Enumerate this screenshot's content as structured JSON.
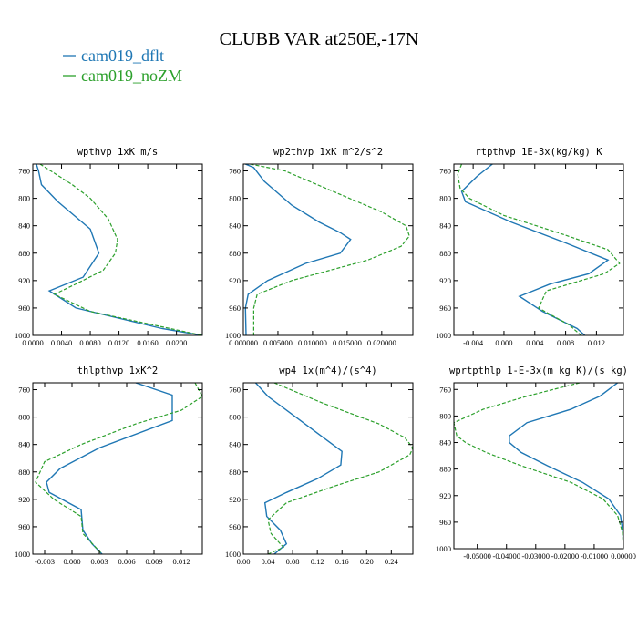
{
  "figure": {
    "title": "CLUBB VAR at250E,-17N",
    "legend": [
      {
        "label": "cam019_dflt",
        "color": "#1f77b4",
        "dash": "solid"
      },
      {
        "label": "cam019_noZM",
        "color": "#2ca02c",
        "dash": "dashed"
      }
    ]
  },
  "chart_data": [
    {
      "type": "line",
      "title": "wpthvp  1xK m/s",
      "xticks": [
        "0.0000",
        "0.0040",
        "0.0080",
        "0.0120",
        "0.0160",
        "0.0200"
      ],
      "yticks": [
        "760",
        "800",
        "840",
        "880",
        "920",
        "960",
        "1000"
      ],
      "xlim": [
        0,
        0.0236
      ],
      "ylim": [
        750,
        1000
      ],
      "y_inverted": true,
      "series": [
        {
          "name": "cam019_dflt",
          "y": [
            750,
            760,
            780,
            805,
            845,
            880,
            915,
            935,
            960,
            990,
            1000
          ],
          "x": [
            0.0005,
            0.0008,
            0.0012,
            0.0035,
            0.008,
            0.0092,
            0.007,
            0.0023,
            0.006,
            0.018,
            0.0236
          ]
        },
        {
          "name": "cam019_noZM",
          "y": [
            750,
            760,
            780,
            800,
            830,
            860,
            880,
            905,
            925,
            940,
            965,
            1000
          ],
          "x": [
            0.001,
            0.0025,
            0.0055,
            0.008,
            0.0105,
            0.0118,
            0.0115,
            0.0098,
            0.006,
            0.003,
            0.008,
            0.0236
          ]
        }
      ]
    },
    {
      "type": "line",
      "title": "wp2thvp  1xK m^2/s^2",
      "xticks": [
        "0.000000",
        "0.005000",
        "0.010000",
        "0.015000",
        "0.020000"
      ],
      "yticks": [
        "760",
        "800",
        "840",
        "880",
        "920",
        "960",
        "1000"
      ],
      "xlim": [
        0,
        0.0245
      ],
      "ylim": [
        750,
        1000
      ],
      "y_inverted": true,
      "series": [
        {
          "name": "cam019_dflt",
          "y": [
            750,
            755,
            775,
            810,
            835,
            850,
            860,
            880,
            895,
            920,
            940,
            960,
            1000
          ],
          "x": [
            0.0003,
            0.0015,
            0.003,
            0.007,
            0.011,
            0.014,
            0.0155,
            0.014,
            0.009,
            0.0035,
            0.0007,
            0.0003,
            0.0004
          ]
        },
        {
          "name": "cam019_noZM",
          "y": [
            750,
            760,
            790,
            820,
            840,
            855,
            870,
            890,
            920,
            940,
            960,
            1000
          ],
          "x": [
            0.001,
            0.006,
            0.013,
            0.02,
            0.0235,
            0.024,
            0.0228,
            0.018,
            0.007,
            0.002,
            0.0015,
            0.0015
          ]
        }
      ]
    },
    {
      "type": "line",
      "title": "rtpthvp  1E-3x(kg/kg) K",
      "xticks": [
        "-0.004",
        "0.000",
        "0.004",
        "0.008",
        "0.012"
      ],
      "yticks": [
        "760",
        "800",
        "840",
        "880",
        "920",
        "960",
        "1000"
      ],
      "xlim": [
        -0.0065,
        0.0155
      ],
      "ylim": [
        750,
        1000
      ],
      "y_inverted": true,
      "series": [
        {
          "name": "cam019_dflt",
          "y": [
            750,
            768,
            790,
            805,
            835,
            865,
            890,
            910,
            925,
            943,
            965,
            990,
            1000
          ],
          "x": [
            -0.0015,
            -0.0035,
            -0.0055,
            -0.005,
            0.001,
            0.008,
            0.0135,
            0.011,
            0.006,
            0.002,
            0.005,
            0.0095,
            0.0105
          ]
        },
        {
          "name": "cam019_noZM",
          "y": [
            750,
            765,
            785,
            800,
            825,
            850,
            875,
            895,
            910,
            935,
            960,
            985,
            1000
          ],
          "x": [
            -0.0055,
            -0.006,
            -0.0057,
            -0.0045,
            0.0,
            0.007,
            0.0135,
            0.015,
            0.013,
            0.0055,
            0.0045,
            0.0085,
            0.01
          ]
        }
      ]
    },
    {
      "type": "line",
      "title": "thlpthvp  1xK^2",
      "xticks": [
        "-0.003",
        "0.000",
        "0.003",
        "0.006",
        "0.009",
        "0.012"
      ],
      "yticks": [
        "760",
        "800",
        "840",
        "880",
        "920",
        "960",
        "1000"
      ],
      "xlim": [
        -0.0043,
        0.0143
      ],
      "ylim": [
        750,
        1000
      ],
      "y_inverted": true,
      "series": [
        {
          "name": "cam019_dflt",
          "y": [
            750,
            768,
            805,
            845,
            875,
            895,
            910,
            935,
            965,
            985,
            1000
          ],
          "x": [
            0.007,
            0.011,
            0.011,
            0.003,
            -0.0013,
            -0.0028,
            -0.0025,
            0.001,
            0.0012,
            0.0022,
            0.0033
          ]
        },
        {
          "name": "cam019_noZM",
          "y": [
            750,
            770,
            790,
            810,
            840,
            865,
            895,
            920,
            945,
            970,
            1000
          ],
          "x": [
            0.0135,
            0.0143,
            0.012,
            0.007,
            0.001,
            -0.003,
            -0.004,
            -0.002,
            0.001,
            0.0012,
            0.0033
          ]
        }
      ]
    },
    {
      "type": "line",
      "title": "wp4  1x(m^4)/(s^4)",
      "xticks": [
        "0.00",
        "0.04",
        "0.08",
        "0.12",
        "0.16",
        "0.20",
        "0.24"
      ],
      "yticks": [
        "760",
        "800",
        "840",
        "880",
        "920",
        "960",
        "1000"
      ],
      "xlim": [
        0,
        0.275
      ],
      "ylim": [
        750,
        1000
      ],
      "y_inverted": true,
      "series": [
        {
          "name": "cam019_dflt",
          "y": [
            750,
            770,
            800,
            830,
            850,
            870,
            890,
            910,
            925,
            945,
            965,
            985,
            1000
          ],
          "x": [
            0.02,
            0.04,
            0.085,
            0.13,
            0.16,
            0.158,
            0.12,
            0.07,
            0.035,
            0.038,
            0.06,
            0.07,
            0.05
          ]
        },
        {
          "name": "cam019_noZM",
          "y": [
            750,
            780,
            810,
            830,
            845,
            855,
            880,
            900,
            925,
            950,
            970,
            990,
            1000
          ],
          "x": [
            0.05,
            0.13,
            0.22,
            0.262,
            0.275,
            0.27,
            0.22,
            0.15,
            0.07,
            0.04,
            0.045,
            0.065,
            0.04
          ]
        }
      ]
    },
    {
      "type": "line",
      "title": "wprtpthlp  1-E-3x(m kg K)/(s kg)",
      "xticks": [
        "-0.05000",
        "-0.04000",
        "-0.03000",
        "-0.02000",
        "-0.01000",
        "0.00000"
      ],
      "yticks": [
        "760",
        "800",
        "840",
        "880",
        "920",
        "960",
        "1000"
      ],
      "xlim": [
        -0.058,
        0
      ],
      "ylim": [
        750,
        1000
      ],
      "y_inverted": true,
      "series": [
        {
          "name": "cam019_dflt",
          "y": [
            750,
            770,
            790,
            810,
            830,
            840,
            855,
            875,
            900,
            925,
            950,
            975,
            1000
          ],
          "x": [
            -0.002,
            -0.008,
            -0.018,
            -0.033,
            -0.039,
            -0.039,
            -0.035,
            -0.026,
            -0.014,
            -0.005,
            -0.001,
            -0.0002,
            0.0
          ]
        },
        {
          "name": "cam019_noZM",
          "y": [
            750,
            770,
            790,
            810,
            830,
            840,
            855,
            875,
            900,
            925,
            950,
            975,
            1000
          ],
          "x": [
            -0.015,
            -0.033,
            -0.048,
            -0.058,
            -0.057,
            -0.054,
            -0.047,
            -0.035,
            -0.018,
            -0.007,
            -0.002,
            -0.0003,
            0.0
          ]
        }
      ]
    }
  ]
}
